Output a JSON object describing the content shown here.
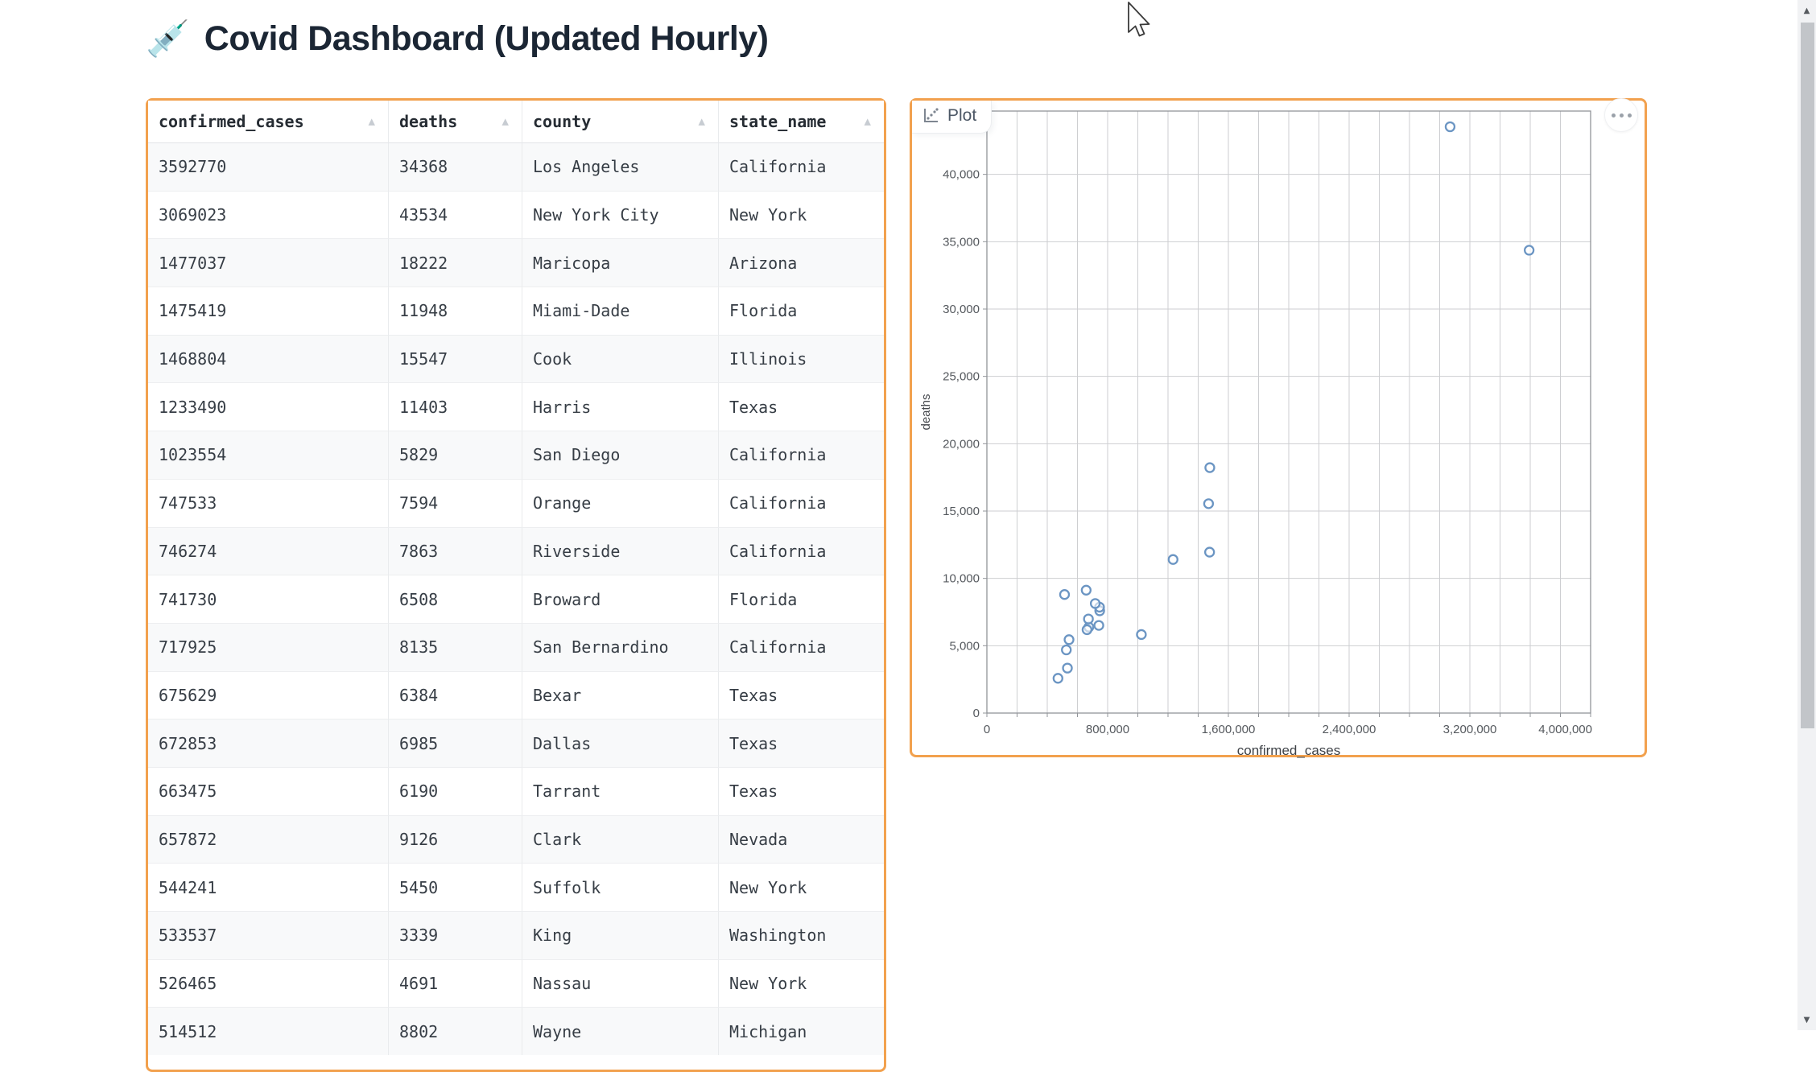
{
  "page": {
    "title": "Covid Dashboard (Updated Hourly)",
    "title_emoji": "💉"
  },
  "table": {
    "columns": [
      "confirmed_cases",
      "deaths",
      "county",
      "state_name"
    ],
    "sort_icon": "▲",
    "rows": [
      [
        "3592770",
        "34368",
        "Los Angeles",
        "California"
      ],
      [
        "3069023",
        "43534",
        "New York City",
        "New York"
      ],
      [
        "1477037",
        "18222",
        "Maricopa",
        "Arizona"
      ],
      [
        "1475419",
        "11948",
        "Miami-Dade",
        "Florida"
      ],
      [
        "1468804",
        "15547",
        "Cook",
        "Illinois"
      ],
      [
        "1233490",
        "11403",
        "Harris",
        "Texas"
      ],
      [
        "1023554",
        "5829",
        "San Diego",
        "California"
      ],
      [
        "747533",
        "7594",
        "Orange",
        "California"
      ],
      [
        "746274",
        "7863",
        "Riverside",
        "California"
      ],
      [
        "741730",
        "6508",
        "Broward",
        "Florida"
      ],
      [
        "717925",
        "8135",
        "San Bernardino",
        "California"
      ],
      [
        "675629",
        "6384",
        "Bexar",
        "Texas"
      ],
      [
        "672853",
        "6985",
        "Dallas",
        "Texas"
      ],
      [
        "663475",
        "6190",
        "Tarrant",
        "Texas"
      ],
      [
        "657872",
        "9126",
        "Clark",
        "Nevada"
      ],
      [
        "544241",
        "5450",
        "Suffolk",
        "New York"
      ],
      [
        "533537",
        "3339",
        "King",
        "Washington"
      ],
      [
        "526465",
        "4691",
        "Nassau",
        "New York"
      ],
      [
        "514512",
        "8802",
        "Wayne",
        "Michigan"
      ]
    ]
  },
  "plot_panel": {
    "label": "Plot"
  },
  "chart_data": {
    "type": "scatter",
    "title": "",
    "xlabel": "confirmed_cases",
    "ylabel": "deaths",
    "xlim": [
      0,
      4000000
    ],
    "ylim": [
      0,
      44700
    ],
    "x_tick_values": [
      0,
      800000,
      1600000,
      2400000,
      3200000,
      4000000
    ],
    "x_tick_labels": [
      "0",
      "800,000",
      "1,600,000",
      "2,400,000",
      "3,200,000",
      "4,000,000"
    ],
    "y_tick_values": [
      0,
      5000,
      10000,
      15000,
      20000,
      25000,
      30000,
      35000,
      40000
    ],
    "y_tick_labels": [
      "0",
      "5,000",
      "10,000",
      "15,000",
      "20,000",
      "25,000",
      "30,000",
      "35,000",
      "40,000"
    ],
    "x_minor_step": 200000,
    "y_minor_step": 5000,
    "grid": true,
    "legend": "none",
    "point_color": "#6b95c3",
    "grid_color": "#cdced1",
    "axis_color": "#919499",
    "points": [
      [
        3592770,
        34368
      ],
      [
        3069023,
        43534
      ],
      [
        1477037,
        18222
      ],
      [
        1475419,
        11948
      ],
      [
        1468804,
        15547
      ],
      [
        1233490,
        11403
      ],
      [
        1023554,
        5829
      ],
      [
        747533,
        7594
      ],
      [
        746274,
        7863
      ],
      [
        741730,
        6508
      ],
      [
        717925,
        8135
      ],
      [
        675629,
        6384
      ],
      [
        672853,
        6985
      ],
      [
        663475,
        6190
      ],
      [
        657872,
        9126
      ],
      [
        544241,
        5450
      ],
      [
        533537,
        3339
      ],
      [
        526465,
        4691
      ],
      [
        514512,
        8802
      ],
      [
        471000,
        2580
      ]
    ]
  },
  "scrollbar": {
    "up_icon": "▲",
    "down_icon": "▼"
  },
  "colors": {
    "accent_orange": "#f2a14e",
    "point_blue": "#6b95c3",
    "stripe_gray": "#f8f9fa"
  }
}
